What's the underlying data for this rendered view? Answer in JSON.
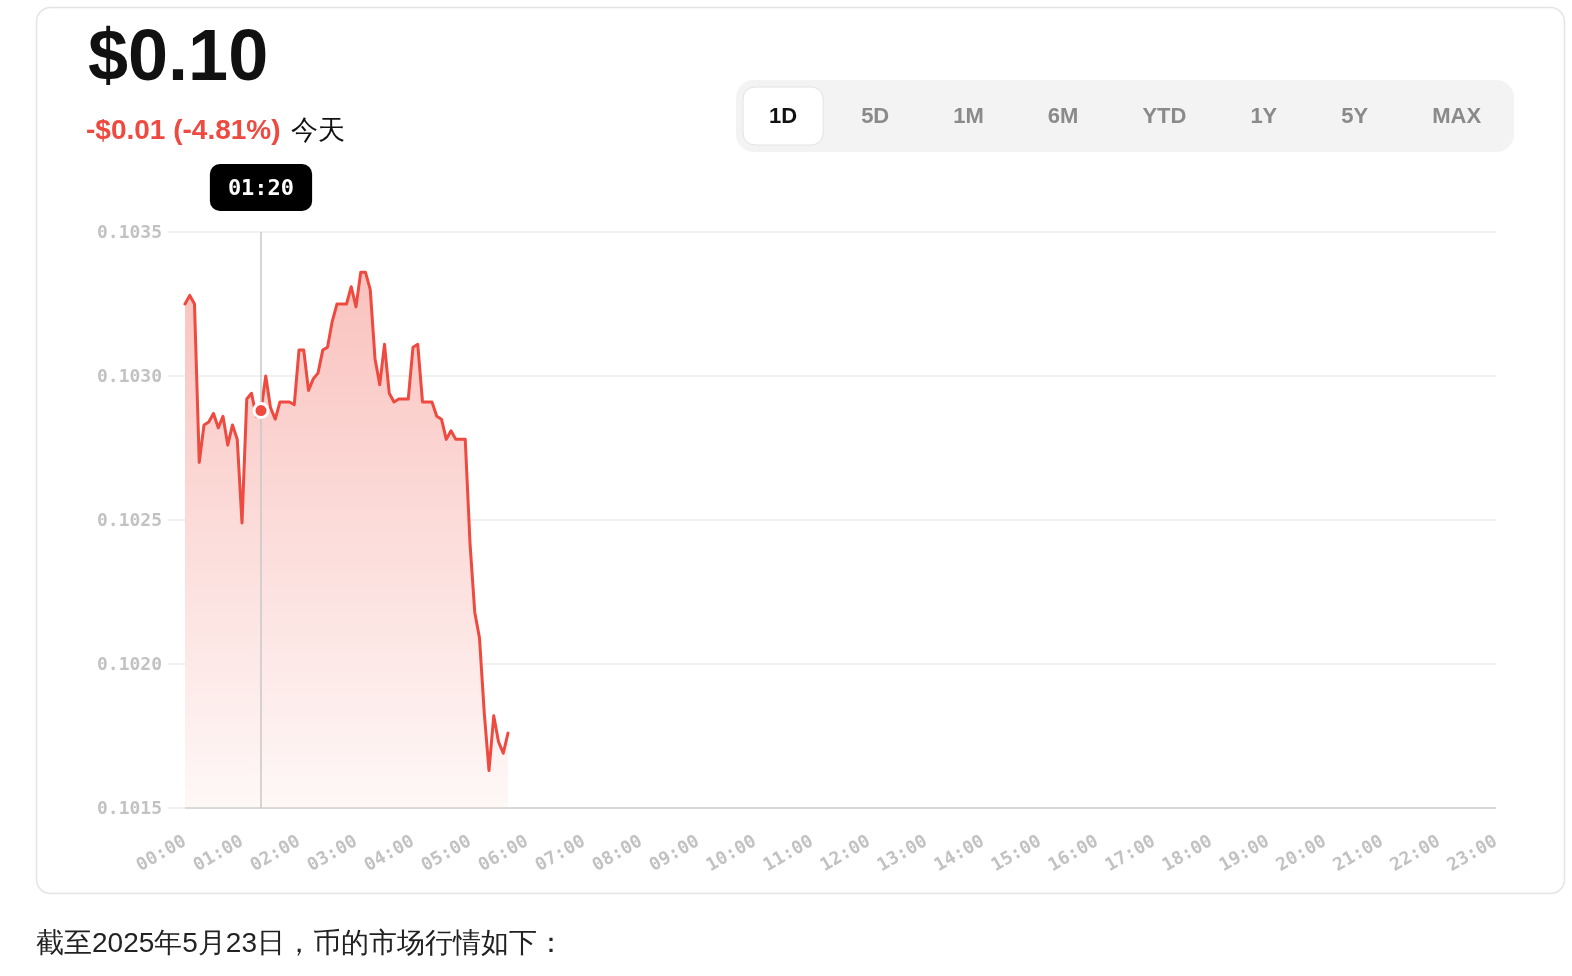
{
  "chart_data": {
    "type": "area",
    "title": "$0.10",
    "subtitle": "-$0.01 (-4.81%)",
    "x": [
      0,
      0.0833,
      0.1667,
      0.25,
      0.3333,
      0.4167,
      0.5,
      0.5833,
      0.6667,
      0.75,
      0.8333,
      0.9167,
      1,
      1.0833,
      1.1667,
      1.25,
      1.3333,
      1.4167,
      1.5,
      1.5833,
      1.6667,
      1.75,
      1.8333,
      1.9167,
      2,
      2.0833,
      2.1667,
      2.25,
      2.3333,
      2.4167,
      2.5,
      2.5833,
      2.6667,
      2.75,
      2.8333,
      2.9167,
      3,
      3.0833,
      3.1667,
      3.25,
      3.3333,
      3.4167,
      3.5,
      3.5833,
      3.6667,
      3.75,
      3.8333,
      3.9167,
      4,
      4.0833,
      4.1667,
      4.25,
      4.3333,
      4.4167,
      4.5,
      4.5833,
      4.6667,
      4.75,
      4.8333,
      4.9167,
      5,
      5.0833,
      5.1667,
      5.25,
      5.3333,
      5.4167,
      5.5,
      5.5833,
      5.6667
    ],
    "series": [
      {
        "color": "#ef4a3f",
        "values": [
          0.10325,
          0.10328,
          0.10325,
          0.1027,
          0.10283,
          0.10284,
          0.10287,
          0.10282,
          0.10286,
          0.10276,
          0.10283,
          0.10278,
          0.10249,
          0.10292,
          0.10294,
          0.10286,
          0.10288,
          0.103,
          0.10289,
          0.10285,
          0.10291,
          0.10291,
          0.10291,
          0.1029,
          0.10309,
          0.10309,
          0.10295,
          0.10299,
          0.10301,
          0.10309,
          0.1031,
          0.10319,
          0.10325,
          0.10325,
          0.10325,
          0.10331,
          0.10324,
          0.10336,
          0.10336,
          0.1033,
          0.10306,
          0.10297,
          0.10311,
          0.10294,
          0.10291,
          0.10292,
          0.10292,
          0.10292,
          0.1031,
          0.10311,
          0.10291,
          0.10291,
          0.10291,
          0.10286,
          0.10285,
          0.10278,
          0.10281,
          0.10278,
          0.10278,
          0.10278,
          0.10242,
          0.10218,
          0.10209,
          0.10183,
          0.10163,
          0.10182,
          0.10173,
          0.10169,
          0.10176
        ]
      }
    ],
    "xlim": [
      0,
      23
    ],
    "xticks": [
      {
        "value": 0,
        "label": "00:00"
      },
      {
        "value": 1,
        "label": "01:00"
      },
      {
        "value": 2,
        "label": "02:00"
      },
      {
        "value": 3,
        "label": "03:00"
      },
      {
        "value": 4,
        "label": "04:00"
      },
      {
        "value": 5,
        "label": "05:00"
      },
      {
        "value": 6,
        "label": "06:00"
      },
      {
        "value": 7,
        "label": "07:00"
      },
      {
        "value": 8,
        "label": "08:00"
      },
      {
        "value": 9,
        "label": "09:00"
      },
      {
        "value": 10,
        "label": "10:00"
      },
      {
        "value": 11,
        "label": "11:00"
      },
      {
        "value": 12,
        "label": "12:00"
      },
      {
        "value": 13,
        "label": "13:00"
      },
      {
        "value": 14,
        "label": "14:00"
      },
      {
        "value": 15,
        "label": "15:00"
      },
      {
        "value": 16,
        "label": "16:00"
      },
      {
        "value": 17,
        "label": "17:00"
      },
      {
        "value": 18,
        "label": "18:00"
      },
      {
        "value": 19,
        "label": "19:00"
      },
      {
        "value": 20,
        "label": "20:00"
      },
      {
        "value": 21,
        "label": "21:00"
      },
      {
        "value": 22,
        "label": "22:00"
      },
      {
        "value": 23,
        "label": "23:00"
      }
    ],
    "ylim": [
      0.1015,
      0.1035
    ],
    "yticks": [
      0.1015,
      {
        "value": 0.102,
        "label": "0.1020"
      },
      0.1025,
      {
        "value": 0.103,
        "label": "0.1030"
      },
      0.1035
    ],
    "grid": "y",
    "ref_lines": [
      {
        "axis": "x",
        "value": 1.3333,
        "label": "01:20",
        "color": "#c8c8c8"
      }
    ],
    "annotations": [
      "今天",
      "1D",
      "5D",
      "1M",
      "6M",
      "YTD",
      "1Y",
      "5Y",
      "MAX",
      "截至2025年5月23日，币的市场行情如下："
    ]
  }
}
